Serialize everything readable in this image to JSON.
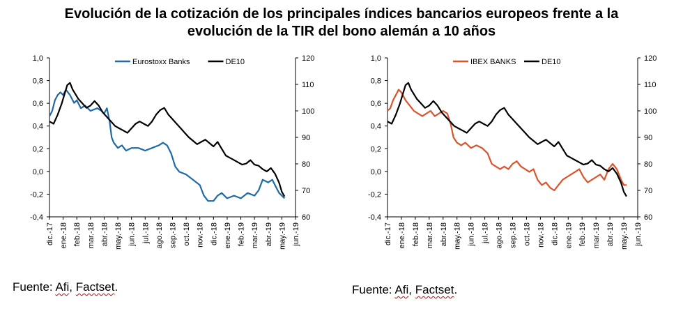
{
  "title": {
    "line1": "Evolución de la cotización de los principales índices bancarios europeos frente a la",
    "line2": "evolución de la TIR del bono alemán a 10 años"
  },
  "sources": [
    {
      "prefix": "Fuente: ",
      "afi": "Afi",
      "sep": ", ",
      "factset": "Factset",
      "suffix": "."
    },
    {
      "prefix": "Fuente: ",
      "afi": "Afi",
      "sep": ", ",
      "factset": "Factset",
      "suffix": "."
    }
  ],
  "colors": {
    "de10": "#000000",
    "eurostoxx": "#1f6aa5",
    "ibex": "#d9532b",
    "axis": "#000000"
  },
  "chart_data": [
    {
      "type": "line",
      "x_categories": [
        "dic.-17",
        "ene.-18",
        "feb.-18",
        "mar.-18",
        "abr.-18",
        "may.-18",
        "jun.-18",
        "jul.-18",
        "ago.-18",
        "sep.-18",
        "oct.-18",
        "nov.-18",
        "dic.-18",
        "ene.-19",
        "feb.-19",
        "mar.-19",
        "abr.-19",
        "may.-19",
        "jun.-19"
      ],
      "y_left_ticks": [
        "-0,4",
        "-0,2",
        "0,0",
        "0,2",
        "0,4",
        "0,6",
        "0,8",
        "1,0"
      ],
      "y_left_range": [
        -0.4,
        1.0
      ],
      "y_right_ticks": [
        "60",
        "70",
        "80",
        "90",
        "100",
        "110",
        "120"
      ],
      "y_right_range": [
        60,
        120
      ],
      "legend": [
        "Eurostoxx Banks",
        "DE10"
      ],
      "legend_position": "top",
      "grid": false,
      "series": [
        {
          "name": "Eurostoxx Banks",
          "axis": "right",
          "color": "#1f6aa5",
          "x": [
            0,
            0.2,
            0.4,
            0.6,
            0.8,
            1.0,
            1.2,
            1.5,
            1.8,
            2.0,
            2.3,
            2.6,
            3.0,
            3.5,
            3.8,
            4.0,
            4.2,
            4.4,
            4.55,
            4.7,
            5.0,
            5.3,
            5.6,
            6.0,
            6.5,
            7.0,
            7.5,
            8.0,
            8.3,
            8.6,
            8.9,
            9.2,
            9.5,
            10.0,
            10.5,
            11.0,
            11.3,
            11.6,
            12.0,
            12.3,
            12.6,
            13.0,
            13.5,
            14.0,
            14.5,
            15.0,
            15.3,
            15.6,
            16.0,
            16.3,
            16.6,
            16.8,
            17.0,
            17.2
          ],
          "y": [
            98,
            100,
            104,
            106,
            107,
            106,
            108,
            106,
            103,
            104,
            101,
            102,
            100,
            101,
            100,
            99,
            101,
            96,
            90,
            88,
            86,
            87,
            85,
            86,
            86,
            85,
            86,
            87,
            88,
            87,
            84,
            79,
            77,
            76,
            74,
            72,
            68,
            66,
            66,
            68,
            69,
            67,
            68,
            67,
            69,
            68,
            70,
            74,
            73,
            74,
            71,
            69,
            68,
            67
          ]
        },
        {
          "name": "DE10",
          "axis": "left",
          "color": "#000000",
          "x": [
            0,
            0.3,
            0.6,
            0.9,
            1.1,
            1.3,
            1.5,
            1.7,
            1.9,
            2.1,
            2.4,
            2.7,
            3.0,
            3.3,
            3.6,
            3.9,
            4.2,
            4.5,
            4.8,
            5.1,
            5.4,
            5.7,
            6.0,
            6.3,
            6.6,
            6.9,
            7.2,
            7.5,
            7.8,
            8.1,
            8.4,
            8.7,
            9.0,
            9.3,
            9.6,
            9.9,
            10.2,
            10.5,
            10.8,
            11.1,
            11.4,
            11.7,
            12.0,
            12.3,
            12.6,
            12.9,
            13.2,
            13.5,
            13.8,
            14.1,
            14.4,
            14.7,
            15.0,
            15.3,
            15.6,
            15.9,
            16.2,
            16.5,
            16.8,
            17.0,
            17.2
          ],
          "y": [
            0.44,
            0.42,
            0.5,
            0.6,
            0.68,
            0.76,
            0.78,
            0.72,
            0.68,
            0.64,
            0.6,
            0.56,
            0.58,
            0.62,
            0.58,
            0.52,
            0.48,
            0.44,
            0.4,
            0.38,
            0.36,
            0.34,
            0.38,
            0.42,
            0.44,
            0.42,
            0.4,
            0.44,
            0.5,
            0.54,
            0.56,
            0.5,
            0.46,
            0.42,
            0.38,
            0.34,
            0.3,
            0.27,
            0.24,
            0.26,
            0.28,
            0.25,
            0.22,
            0.26,
            0.2,
            0.14,
            0.12,
            0.1,
            0.08,
            0.06,
            0.07,
            0.1,
            0.06,
            0.05,
            0.02,
            0.0,
            0.03,
            -0.02,
            -0.1,
            -0.18,
            -0.22
          ]
        }
      ]
    },
    {
      "type": "line",
      "x_categories": [
        "dic.-17",
        "ene.-18",
        "feb.-18",
        "mar.-18",
        "abr.-18",
        "may.-18",
        "jun.-18",
        "jul.-18",
        "ago.-18",
        "sep.-18",
        "oct.-18",
        "nov.-18",
        "dic.-18",
        "ene.-19",
        "feb.-19",
        "mar.-19",
        "abr.-19",
        "may.-19",
        "jun.-19"
      ],
      "y_left_ticks": [
        "-0,4",
        "-0,2",
        "0,0",
        "0,2",
        "0,4",
        "0,6",
        "0,8",
        "1,0"
      ],
      "y_left_range": [
        -0.4,
        1.0
      ],
      "y_right_ticks": [
        "60",
        "70",
        "80",
        "90",
        "100",
        "110",
        "120"
      ],
      "y_right_range": [
        60,
        120
      ],
      "legend": [
        "IBEX BANKS",
        "DE10"
      ],
      "legend_position": "top",
      "grid": false,
      "series": [
        {
          "name": "IBEX BANKS",
          "axis": "right",
          "color": "#d9532b",
          "x": [
            0,
            0.2,
            0.4,
            0.6,
            0.8,
            1.0,
            1.3,
            1.6,
            1.9,
            2.2,
            2.5,
            2.8,
            3.1,
            3.4,
            3.7,
            4.0,
            4.3,
            4.55,
            4.75,
            5.0,
            5.3,
            5.6,
            6.0,
            6.4,
            6.8,
            7.2,
            7.5,
            7.8,
            8.1,
            8.4,
            8.7,
            9.0,
            9.3,
            9.6,
            9.9,
            10.2,
            10.5,
            10.8,
            11.1,
            11.4,
            11.7,
            12.0,
            12.3,
            12.6,
            12.9,
            13.2,
            13.5,
            13.8,
            14.1,
            14.4,
            14.7,
            15.0,
            15.3,
            15.6,
            15.9,
            16.2,
            16.5,
            16.8,
            17.0,
            17.2
          ],
          "y": [
            100,
            101,
            104,
            106,
            108,
            107,
            104,
            102,
            100,
            99,
            98,
            99,
            100,
            98,
            99,
            100,
            99,
            95,
            90,
            88,
            87,
            88,
            86,
            87,
            86,
            84,
            80,
            79,
            78,
            79,
            78,
            80,
            81,
            79,
            78,
            77,
            78,
            74,
            72,
            73,
            71,
            70,
            72,
            74,
            75,
            76,
            77,
            78,
            75,
            73,
            74,
            75,
            76,
            74,
            78,
            80,
            78,
            74,
            72,
            72
          ]
        },
        {
          "name": "DE10",
          "axis": "left",
          "color": "#000000",
          "x": [
            0,
            0.3,
            0.6,
            0.9,
            1.1,
            1.3,
            1.5,
            1.7,
            1.9,
            2.1,
            2.4,
            2.7,
            3.0,
            3.3,
            3.6,
            3.9,
            4.2,
            4.5,
            4.8,
            5.1,
            5.4,
            5.7,
            6.0,
            6.3,
            6.6,
            6.9,
            7.2,
            7.5,
            7.8,
            8.1,
            8.4,
            8.7,
            9.0,
            9.3,
            9.6,
            9.9,
            10.2,
            10.5,
            10.8,
            11.1,
            11.4,
            11.7,
            12.0,
            12.3,
            12.6,
            12.9,
            13.2,
            13.5,
            13.8,
            14.1,
            14.4,
            14.7,
            15.0,
            15.3,
            15.6,
            15.9,
            16.2,
            16.5,
            16.8,
            17.0,
            17.2
          ],
          "y": [
            0.44,
            0.42,
            0.5,
            0.6,
            0.68,
            0.76,
            0.78,
            0.72,
            0.68,
            0.64,
            0.6,
            0.56,
            0.58,
            0.62,
            0.58,
            0.52,
            0.48,
            0.44,
            0.4,
            0.38,
            0.36,
            0.34,
            0.38,
            0.42,
            0.44,
            0.42,
            0.4,
            0.44,
            0.5,
            0.54,
            0.56,
            0.5,
            0.46,
            0.42,
            0.38,
            0.34,
            0.3,
            0.27,
            0.24,
            0.26,
            0.28,
            0.25,
            0.22,
            0.26,
            0.2,
            0.14,
            0.12,
            0.1,
            0.08,
            0.06,
            0.07,
            0.1,
            0.06,
            0.05,
            0.02,
            0.0,
            0.03,
            -0.02,
            -0.1,
            -0.18,
            -0.22
          ]
        }
      ]
    }
  ]
}
